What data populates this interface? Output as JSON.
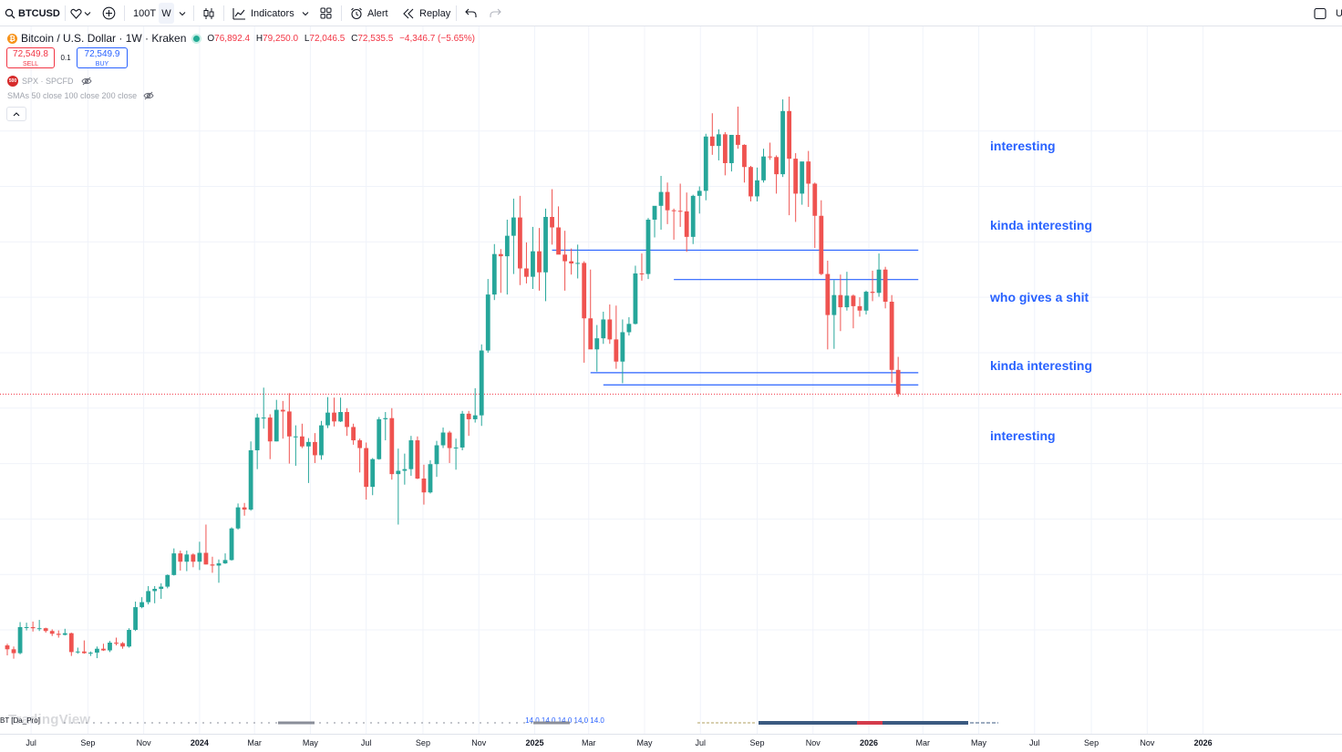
{
  "toolbar": {
    "symbol": "BTCUSD",
    "interval_btn": "100T",
    "interval": "W",
    "indicators_label": "Indicators",
    "alert_label": "Alert",
    "replay_label": "Replay",
    "right_cut": "U"
  },
  "legend": {
    "title": "Bitcoin / U.S. Dollar · 1W · Kraken",
    "o_label": "O",
    "o": "76,892.4",
    "h_label": "H",
    "h": "79,250.0",
    "l_label": "L",
    "l": "72,046.5",
    "c_label": "C",
    "c": "72,535.5",
    "change": "−4,346.7 (−5.65%)",
    "sell_price": "72,549.8",
    "sell_label": "SELL",
    "qty": "0.1",
    "buy_price": "72,549.9",
    "buy_label": "BUY",
    "spx_badge": "500",
    "spx": "SPX · SPCFD",
    "sma": "SMAs 50 close 100 close 200 close",
    "bottom_indicator": "BT [Da_Pro]",
    "bottom_values": "14.0  14.0  14.0  14.0  14.0"
  },
  "watermark": "TradingView",
  "annotations": [
    {
      "text": "interesting"
    },
    {
      "text": "kinda interesting"
    },
    {
      "text": "who gives a shit"
    },
    {
      "text": "kinda interesting"
    },
    {
      "text": "interesting"
    }
  ],
  "colors": {
    "up": "#26a69a",
    "down": "#ef5350",
    "drawing": "#2962ff",
    "price_line": "#f23645",
    "grid": "#f0f3fa"
  },
  "x_axis_labels": [
    "Jul",
    "Sep",
    "Nov",
    "2024",
    "Mar",
    "May",
    "Jul",
    "Sep",
    "Nov",
    "2025",
    "Mar",
    "May",
    "Jul",
    "Sep",
    "Nov",
    "2026",
    "Mar",
    "May",
    "Jul",
    "Sep",
    "Nov",
    "2026"
  ],
  "chart_data": {
    "type": "candlestick",
    "symbol": "BTCUSD",
    "interval": "1W",
    "last_price": 72535.5,
    "horizontal_levels": [
      {
        "price": 98500,
        "from": "2025-01-20",
        "to": "2026-02-24"
      },
      {
        "price": 93200,
        "from": "2025-06-02",
        "to": "2026-02-24"
      },
      {
        "price": 76400,
        "from": "2025-03-03",
        "to": "2026-02-24"
      },
      {
        "price": 74200,
        "from": "2025-03-17",
        "to": "2026-02-24"
      }
    ],
    "candles": [
      {
        "date": "2023-06-05",
        "o": 27200,
        "h": 27500,
        "l": 25400,
        "c": 26500
      },
      {
        "date": "2023-06-12",
        "o": 26500,
        "h": 27000,
        "l": 24800,
        "c": 25800
      },
      {
        "date": "2023-06-19",
        "o": 25800,
        "h": 31400,
        "l": 25600,
        "c": 30500
      },
      {
        "date": "2023-06-26",
        "o": 30500,
        "h": 31300,
        "l": 29900,
        "c": 30500
      },
      {
        "date": "2023-07-03",
        "o": 30500,
        "h": 31500,
        "l": 29700,
        "c": 30300
      },
      {
        "date": "2023-07-10",
        "o": 30300,
        "h": 31800,
        "l": 29800,
        "c": 30300
      },
      {
        "date": "2023-07-17",
        "o": 30300,
        "h": 30400,
        "l": 29500,
        "c": 29800
      },
      {
        "date": "2023-07-24",
        "o": 29800,
        "h": 30100,
        "l": 28900,
        "c": 29300
      },
      {
        "date": "2023-07-31",
        "o": 29300,
        "h": 29900,
        "l": 28600,
        "c": 29100
      },
      {
        "date": "2023-08-07",
        "o": 29100,
        "h": 30200,
        "l": 29000,
        "c": 29400
      },
      {
        "date": "2023-08-14",
        "o": 29400,
        "h": 29500,
        "l": 25300,
        "c": 26000
      },
      {
        "date": "2023-08-21",
        "o": 26000,
        "h": 26800,
        "l": 25700,
        "c": 26100
      },
      {
        "date": "2023-08-28",
        "o": 26100,
        "h": 28100,
        "l": 25700,
        "c": 25800
      },
      {
        "date": "2023-09-04",
        "o": 25800,
        "h": 26100,
        "l": 25300,
        "c": 25900
      },
      {
        "date": "2023-09-11",
        "o": 25900,
        "h": 27000,
        "l": 24900,
        "c": 26600
      },
      {
        "date": "2023-09-18",
        "o": 26600,
        "h": 27500,
        "l": 26200,
        "c": 26300
      },
      {
        "date": "2023-09-25",
        "o": 26300,
        "h": 28000,
        "l": 26000,
        "c": 27700
      },
      {
        "date": "2023-10-02",
        "o": 27700,
        "h": 28600,
        "l": 27200,
        "c": 27600
      },
      {
        "date": "2023-10-09",
        "o": 27600,
        "h": 27800,
        "l": 26600,
        "c": 27000
      },
      {
        "date": "2023-10-16",
        "o": 27000,
        "h": 30300,
        "l": 26800,
        "c": 30000
      },
      {
        "date": "2023-10-23",
        "o": 30000,
        "h": 35100,
        "l": 29800,
        "c": 34100
      },
      {
        "date": "2023-10-30",
        "o": 34100,
        "h": 35900,
        "l": 33900,
        "c": 35000
      },
      {
        "date": "2023-11-06",
        "o": 35000,
        "h": 37900,
        "l": 34600,
        "c": 37000
      },
      {
        "date": "2023-11-13",
        "o": 37000,
        "h": 37900,
        "l": 34800,
        "c": 37400
      },
      {
        "date": "2023-11-20",
        "o": 37400,
        "h": 38400,
        "l": 35600,
        "c": 37800
      },
      {
        "date": "2023-11-27",
        "o": 37800,
        "h": 40000,
        "l": 37500,
        "c": 39900
      },
      {
        "date": "2023-12-04",
        "o": 39900,
        "h": 44700,
        "l": 39800,
        "c": 43800
      },
      {
        "date": "2023-12-11",
        "o": 43800,
        "h": 44300,
        "l": 40700,
        "c": 42300
      },
      {
        "date": "2023-12-18",
        "o": 42300,
        "h": 44300,
        "l": 40600,
        "c": 43600
      },
      {
        "date": "2023-12-25",
        "o": 43600,
        "h": 43800,
        "l": 41300,
        "c": 42300
      },
      {
        "date": "2024-01-01",
        "o": 42300,
        "h": 45900,
        "l": 40800,
        "c": 43900
      },
      {
        "date": "2024-01-08",
        "o": 43900,
        "h": 49000,
        "l": 41800,
        "c": 41800
      },
      {
        "date": "2024-01-15",
        "o": 41800,
        "h": 43200,
        "l": 40300,
        "c": 41600
      },
      {
        "date": "2024-01-22",
        "o": 41600,
        "h": 42700,
        "l": 38500,
        "c": 42000
      },
      {
        "date": "2024-01-29",
        "o": 42000,
        "h": 43800,
        "l": 41900,
        "c": 42600
      },
      {
        "date": "2024-02-05",
        "o": 42600,
        "h": 48500,
        "l": 42500,
        "c": 48300
      },
      {
        "date": "2024-02-12",
        "o": 48300,
        "h": 52800,
        "l": 48100,
        "c": 52100
      },
      {
        "date": "2024-02-19",
        "o": 52100,
        "h": 52900,
        "l": 50600,
        "c": 51700
      },
      {
        "date": "2024-02-26",
        "o": 51700,
        "h": 64000,
        "l": 51500,
        "c": 62400
      },
      {
        "date": "2024-03-04",
        "o": 62400,
        "h": 69000,
        "l": 59000,
        "c": 68300
      },
      {
        "date": "2024-03-11",
        "o": 68300,
        "h": 73700,
        "l": 66300,
        "c": 68300
      },
      {
        "date": "2024-03-18",
        "o": 68300,
        "h": 68900,
        "l": 60800,
        "c": 64000
      },
      {
        "date": "2024-03-25",
        "o": 64000,
        "h": 71500,
        "l": 64000,
        "c": 69700
      },
      {
        "date": "2024-04-01",
        "o": 69700,
        "h": 71300,
        "l": 64500,
        "c": 69400
      },
      {
        "date": "2024-04-08",
        "o": 69400,
        "h": 72700,
        "l": 60000,
        "c": 64900
      },
      {
        "date": "2024-04-15",
        "o": 64900,
        "h": 66900,
        "l": 59600,
        "c": 64900
      },
      {
        "date": "2024-04-22",
        "o": 64900,
        "h": 67200,
        "l": 62800,
        "c": 63100
      },
      {
        "date": "2024-04-29",
        "o": 63100,
        "h": 64600,
        "l": 56500,
        "c": 63900
      },
      {
        "date": "2024-05-06",
        "o": 63900,
        "h": 65500,
        "l": 60100,
        "c": 61500
      },
      {
        "date": "2024-05-13",
        "o": 61500,
        "h": 67700,
        "l": 60700,
        "c": 66900
      },
      {
        "date": "2024-05-20",
        "o": 66900,
        "h": 72000,
        "l": 66400,
        "c": 69200
      },
      {
        "date": "2024-05-27",
        "o": 69200,
        "h": 71900,
        "l": 66700,
        "c": 67600
      },
      {
        "date": "2024-06-03",
        "o": 67600,
        "h": 71900,
        "l": 67500,
        "c": 69300
      },
      {
        "date": "2024-06-10",
        "o": 69300,
        "h": 70000,
        "l": 65000,
        "c": 66600
      },
      {
        "date": "2024-06-17",
        "o": 66600,
        "h": 67200,
        "l": 63400,
        "c": 64200
      },
      {
        "date": "2024-06-24",
        "o": 64200,
        "h": 64500,
        "l": 58400,
        "c": 62800
      },
      {
        "date": "2024-07-01",
        "o": 62800,
        "h": 63800,
        "l": 53500,
        "c": 55800
      },
      {
        "date": "2024-07-08",
        "o": 55800,
        "h": 61000,
        "l": 54300,
        "c": 60800
      },
      {
        "date": "2024-07-15",
        "o": 60800,
        "h": 68400,
        "l": 60700,
        "c": 68000
      },
      {
        "date": "2024-07-22",
        "o": 68000,
        "h": 69300,
        "l": 64200,
        "c": 68200
      },
      {
        "date": "2024-07-29",
        "o": 68200,
        "h": 70000,
        "l": 57100,
        "c": 58100
      },
      {
        "date": "2024-08-05",
        "o": 58100,
        "h": 62700,
        "l": 49000,
        "c": 58700
      },
      {
        "date": "2024-08-12",
        "o": 58700,
        "h": 61800,
        "l": 56200,
        "c": 59000
      },
      {
        "date": "2024-08-19",
        "o": 59000,
        "h": 65000,
        "l": 57800,
        "c": 64200
      },
      {
        "date": "2024-08-26",
        "o": 64200,
        "h": 64900,
        "l": 57200,
        "c": 57300
      },
      {
        "date": "2024-09-02",
        "o": 57300,
        "h": 59800,
        "l": 52600,
        "c": 54800
      },
      {
        "date": "2024-09-09",
        "o": 54800,
        "h": 60600,
        "l": 54600,
        "c": 59900
      },
      {
        "date": "2024-09-16",
        "o": 59900,
        "h": 64100,
        "l": 57600,
        "c": 63300
      },
      {
        "date": "2024-09-23",
        "o": 63300,
        "h": 66500,
        "l": 62800,
        "c": 65600
      },
      {
        "date": "2024-09-30",
        "o": 65600,
        "h": 65900,
        "l": 60100,
        "c": 62800
      },
      {
        "date": "2024-10-07",
        "o": 62800,
        "h": 64500,
        "l": 58900,
        "c": 62900
      },
      {
        "date": "2024-10-14",
        "o": 62900,
        "h": 69500,
        "l": 62400,
        "c": 69000
      },
      {
        "date": "2024-10-21",
        "o": 69000,
        "h": 69500,
        "l": 65000,
        "c": 68000
      },
      {
        "date": "2024-10-28",
        "o": 68000,
        "h": 73600,
        "l": 67400,
        "c": 68700
      },
      {
        "date": "2024-11-04",
        "o": 68700,
        "h": 81500,
        "l": 66800,
        "c": 80400
      },
      {
        "date": "2024-11-11",
        "o": 80400,
        "h": 93300,
        "l": 80000,
        "c": 90500
      },
      {
        "date": "2024-11-18",
        "o": 90500,
        "h": 99600,
        "l": 89500,
        "c": 97800
      },
      {
        "date": "2024-11-25",
        "o": 97800,
        "h": 98700,
        "l": 90800,
        "c": 97400
      },
      {
        "date": "2024-12-02",
        "o": 97400,
        "h": 104000,
        "l": 90500,
        "c": 101100
      },
      {
        "date": "2024-12-09",
        "o": 101100,
        "h": 107800,
        "l": 94200,
        "c": 104400
      },
      {
        "date": "2024-12-16",
        "o": 104400,
        "h": 108300,
        "l": 92200,
        "c": 95200
      },
      {
        "date": "2024-12-23",
        "o": 95200,
        "h": 99900,
        "l": 92500,
        "c": 93700
      },
      {
        "date": "2024-12-30",
        "o": 93700,
        "h": 102700,
        "l": 91500,
        "c": 98300
      },
      {
        "date": "2025-01-06",
        "o": 98300,
        "h": 102500,
        "l": 91200,
        "c": 94500
      },
      {
        "date": "2025-01-13",
        "o": 94500,
        "h": 106000,
        "l": 89300,
        "c": 104500
      },
      {
        "date": "2025-01-20",
        "o": 104500,
        "h": 109500,
        "l": 99500,
        "c": 102600
      },
      {
        "date": "2025-01-27",
        "o": 102600,
        "h": 106400,
        "l": 97800,
        "c": 97700
      },
      {
        "date": "2025-02-03",
        "o": 97700,
        "h": 102000,
        "l": 91200,
        "c": 96500
      },
      {
        "date": "2025-02-10",
        "o": 96500,
        "h": 98800,
        "l": 94100,
        "c": 96100
      },
      {
        "date": "2025-02-17",
        "o": 96100,
        "h": 99500,
        "l": 93400,
        "c": 96200
      },
      {
        "date": "2025-02-24",
        "o": 96200,
        "h": 96500,
        "l": 78200,
        "c": 86200
      },
      {
        "date": "2025-03-03",
        "o": 86200,
        "h": 95000,
        "l": 81500,
        "c": 80600
      },
      {
        "date": "2025-03-10",
        "o": 80600,
        "h": 85000,
        "l": 76600,
        "c": 82600
      },
      {
        "date": "2025-03-17",
        "o": 82600,
        "h": 87400,
        "l": 81600,
        "c": 86000
      },
      {
        "date": "2025-03-24",
        "o": 86000,
        "h": 88700,
        "l": 81600,
        "c": 82400
      },
      {
        "date": "2025-03-31",
        "o": 82400,
        "h": 88500,
        "l": 77100,
        "c": 78400
      },
      {
        "date": "2025-04-07",
        "o": 78400,
        "h": 86000,
        "l": 74500,
        "c": 83700
      },
      {
        "date": "2025-04-14",
        "o": 83700,
        "h": 86400,
        "l": 83100,
        "c": 85200
      },
      {
        "date": "2025-04-21",
        "o": 85200,
        "h": 95700,
        "l": 85100,
        "c": 94300
      },
      {
        "date": "2025-04-28",
        "o": 94300,
        "h": 97900,
        "l": 93000,
        "c": 94200
      },
      {
        "date": "2025-05-05",
        "o": 94200,
        "h": 104300,
        "l": 93300,
        "c": 104000
      },
      {
        "date": "2025-05-12",
        "o": 104000,
        "h": 105800,
        "l": 100800,
        "c": 106500
      },
      {
        "date": "2025-05-19",
        "o": 106500,
        "h": 111900,
        "l": 102200,
        "c": 109000
      },
      {
        "date": "2025-05-26",
        "o": 109000,
        "h": 110700,
        "l": 103200,
        "c": 105700
      },
      {
        "date": "2025-06-02",
        "o": 105700,
        "h": 106000,
        "l": 100400,
        "c": 105600
      },
      {
        "date": "2025-06-09",
        "o": 105600,
        "h": 110500,
        "l": 102700,
        "c": 105500
      },
      {
        "date": "2025-06-16",
        "o": 105500,
        "h": 108900,
        "l": 98200,
        "c": 100900
      },
      {
        "date": "2025-06-23",
        "o": 100900,
        "h": 108500,
        "l": 99600,
        "c": 108300
      },
      {
        "date": "2025-06-30",
        "o": 108300,
        "h": 110000,
        "l": 105100,
        "c": 109200
      },
      {
        "date": "2025-07-07",
        "o": 109200,
        "h": 119500,
        "l": 107500,
        "c": 119000
      },
      {
        "date": "2025-07-14",
        "o": 119000,
        "h": 123200,
        "l": 115700,
        "c": 117300
      },
      {
        "date": "2025-07-21",
        "o": 117300,
        "h": 120300,
        "l": 114700,
        "c": 119400
      },
      {
        "date": "2025-07-28",
        "o": 119400,
        "h": 119800,
        "l": 112000,
        "c": 114200
      },
      {
        "date": "2025-08-04",
        "o": 114200,
        "h": 119300,
        "l": 112700,
        "c": 119300
      },
      {
        "date": "2025-08-11",
        "o": 119300,
        "h": 124400,
        "l": 116800,
        "c": 117500
      },
      {
        "date": "2025-08-18",
        "o": 117500,
        "h": 117600,
        "l": 110700,
        "c": 113500
      },
      {
        "date": "2025-08-25",
        "o": 113500,
        "h": 113700,
        "l": 107300,
        "c": 108200
      },
      {
        "date": "2025-09-01",
        "o": 108200,
        "h": 113400,
        "l": 107300,
        "c": 111100
      },
      {
        "date": "2025-09-08",
        "o": 111100,
        "h": 116800,
        "l": 110700,
        "c": 115400
      },
      {
        "date": "2025-09-15",
        "o": 115400,
        "h": 117900,
        "l": 114800,
        "c": 115300
      },
      {
        "date": "2025-09-22",
        "o": 115300,
        "h": 115600,
        "l": 108700,
        "c": 112200
      },
      {
        "date": "2025-09-29",
        "o": 112200,
        "h": 125700,
        "l": 111700,
        "c": 123600
      },
      {
        "date": "2025-10-06",
        "o": 123600,
        "h": 126200,
        "l": 104800,
        "c": 115000
      },
      {
        "date": "2025-10-13",
        "o": 115000,
        "h": 116000,
        "l": 103600,
        "c": 108700
      },
      {
        "date": "2025-10-20",
        "o": 108700,
        "h": 114000,
        "l": 106700,
        "c": 114500
      },
      {
        "date": "2025-10-27",
        "o": 114500,
        "h": 116400,
        "l": 106300,
        "c": 110500
      },
      {
        "date": "2025-11-03",
        "o": 110500,
        "h": 110700,
        "l": 98900,
        "c": 104700
      },
      {
        "date": "2025-11-10",
        "o": 104700,
        "h": 107500,
        "l": 94000,
        "c": 94200
      },
      {
        "date": "2025-11-17",
        "o": 94200,
        "h": 96600,
        "l": 80600,
        "c": 86800
      },
      {
        "date": "2025-11-24",
        "o": 86800,
        "h": 93100,
        "l": 80700,
        "c": 90400
      },
      {
        "date": "2025-12-01",
        "o": 90400,
        "h": 94100,
        "l": 83900,
        "c": 88200
      },
      {
        "date": "2025-12-08",
        "o": 88200,
        "h": 94600,
        "l": 87600,
        "c": 90300
      },
      {
        "date": "2025-12-15",
        "o": 90300,
        "h": 90500,
        "l": 84400,
        "c": 88400
      },
      {
        "date": "2025-12-22",
        "o": 88400,
        "h": 90000,
        "l": 86500,
        "c": 87600
      },
      {
        "date": "2025-12-29",
        "o": 87600,
        "h": 91200,
        "l": 86900,
        "c": 91000
      },
      {
        "date": "2026-01-05",
        "o": 91000,
        "h": 94800,
        "l": 89300,
        "c": 90800
      },
      {
        "date": "2026-01-12",
        "o": 90800,
        "h": 97900,
        "l": 90100,
        "c": 95000
      },
      {
        "date": "2026-01-19",
        "o": 95000,
        "h": 95500,
        "l": 88000,
        "c": 89200
      },
      {
        "date": "2026-01-26",
        "o": 89200,
        "h": 90400,
        "l": 74600,
        "c": 76900
      },
      {
        "date": "2026-02-02",
        "o": 76900,
        "h": 79250,
        "l": 72046.5,
        "c": 72535.5
      }
    ]
  }
}
